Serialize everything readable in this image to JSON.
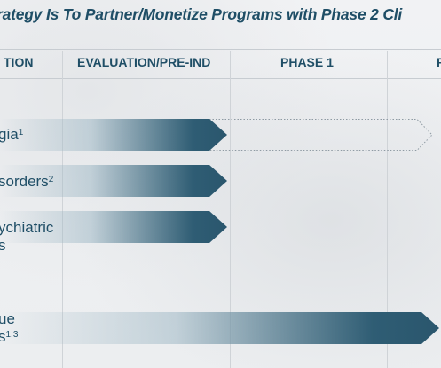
{
  "title": "rategy Is To Partner/Monetize Programs with Phase 2 Cli",
  "columns": [
    "TION",
    "EVALUATION/PRE-IND",
    "PHASE 1",
    "P"
  ],
  "rows": [
    {
      "label_line1": "gia",
      "sup": "1",
      "label_line2": ""
    },
    {
      "label_line1": "sorders",
      "sup": "2",
      "label_line2": ""
    },
    {
      "label_line1": "ychiatric",
      "sup": "",
      "label_line2": "s"
    },
    {
      "label_line1": "ue",
      "sup": "",
      "label_line2": "s",
      "sup2": "1,3"
    }
  ]
}
